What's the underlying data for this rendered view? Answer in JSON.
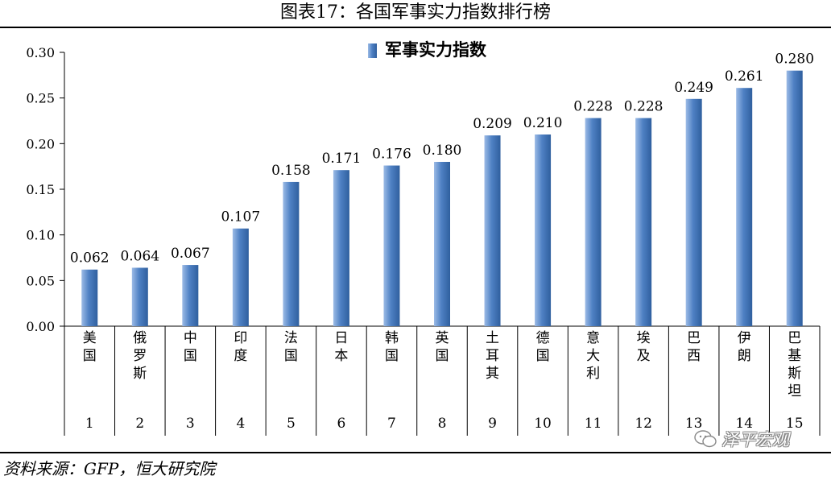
{
  "title": "图表17：各国军事实力指数排行榜",
  "source": "资料来源：GFP，恒大研究院",
  "watermark": {
    "text": "泽平宏观",
    "icon": "wechat-icon"
  },
  "colors": {
    "bar_light": "#9cbbe6",
    "bar_mid": "#4f81c4",
    "bar_dark": "#2f5f9e"
  },
  "chart_data": {
    "type": "bar",
    "series": [
      {
        "name": "军事实力指数",
        "values": [
          0.062,
          0.064,
          0.067,
          0.107,
          0.158,
          0.171,
          0.176,
          0.18,
          0.209,
          0.21,
          0.228,
          0.228,
          0.249,
          0.261,
          0.28
        ]
      }
    ],
    "categories": [
      "美国",
      "俄罗斯",
      "中国",
      "印度",
      "法国",
      "日本",
      "韩国",
      "英国",
      "土耳其",
      "德国",
      "意大利",
      "埃及",
      "巴西",
      "伊朗",
      "巴基斯坦"
    ],
    "ranks": [
      "1",
      "2",
      "3",
      "4",
      "5",
      "6",
      "7",
      "8",
      "9",
      "10",
      "11",
      "12",
      "13",
      "14",
      "15"
    ],
    "data_labels": [
      "0.062",
      "0.064",
      "0.067",
      "0.107",
      "0.158",
      "0.171",
      "0.176",
      "0.180",
      "0.209",
      "0.210",
      "0.228",
      "0.228",
      "0.249",
      "0.261",
      "0.280"
    ],
    "yticks": [
      "0.00",
      "0.05",
      "0.10",
      "0.15",
      "0.20",
      "0.25",
      "0.30"
    ],
    "ylim": [
      0,
      0.3
    ],
    "legend_position": "top-center",
    "grid": false
  }
}
